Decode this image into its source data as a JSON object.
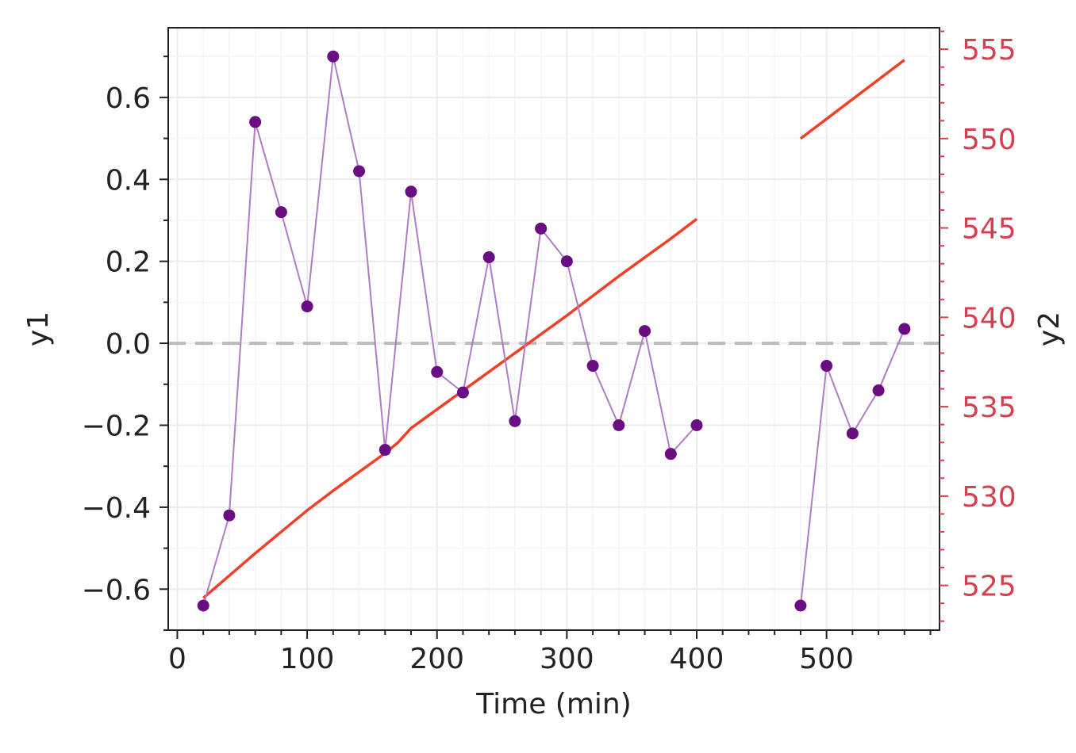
{
  "chart_data": {
    "type": "line",
    "title": "",
    "xlabel": "Time (min)",
    "ylabel": "y1",
    "y2label": "y2",
    "xlim": [
      -7,
      587
    ],
    "ylim": [
      -0.7,
      0.77
    ],
    "y2lim": [
      522.5,
      556.2
    ],
    "xticks": [
      0,
      100,
      200,
      300,
      400,
      500
    ],
    "yticks": [
      -0.6,
      -0.4,
      -0.2,
      0.0,
      0.2,
      0.4,
      0.6
    ],
    "ytick_labels": [
      "−0.6",
      "−0.4",
      "−0.2",
      "0.0",
      "0.2",
      "0.4",
      "0.6"
    ],
    "y2ticks": [
      525,
      530,
      535,
      540,
      545,
      550,
      555
    ],
    "grid": true,
    "reference_line": {
      "axis": "y1",
      "value": 0.0,
      "style": "dashed"
    },
    "colors": {
      "y1_line": "#b07cc6",
      "y1_marker": "#6a0d83",
      "y2_line": "#f0402a",
      "y2_axis": "#d6404e",
      "reference": "#bbbbbb",
      "frame": "#222222"
    },
    "series": [
      {
        "axis": "y1",
        "style": "line+markers",
        "segments": [
          {
            "x": [
              20,
              40,
              60,
              80,
              100,
              120,
              140,
              160,
              180,
              200,
              220,
              240,
              260,
              280,
              300,
              320,
              340,
              360,
              380,
              400
            ],
            "y": [
              -0.64,
              -0.42,
              0.54,
              0.32,
              0.09,
              0.7,
              0.42,
              -0.26,
              0.37,
              -0.07,
              -0.12,
              0.21,
              -0.19,
              0.28,
              0.2,
              -0.055,
              -0.2,
              0.03,
              -0.27,
              -0.2
            ]
          },
          {
            "x": [
              480,
              500,
              520,
              540,
              560
            ],
            "y": [
              -0.64,
              -0.055,
              -0.22,
              -0.115,
              0.035
            ]
          }
        ]
      },
      {
        "axis": "y2",
        "style": "line",
        "segments": [
          {
            "x": [
              20,
              60,
              100,
              120,
              160,
              170,
              180,
              220,
              260,
              300,
              340,
              380,
              400
            ],
            "y": [
              524.3,
              526.8,
              529.2,
              530.3,
              532.4,
              533.0,
              533.8,
              535.9,
              538.0,
              540.1,
              542.3,
              544.4,
              545.5
            ]
          },
          {
            "x": [
              480,
              560
            ],
            "y": [
              550.0,
              554.4
            ]
          }
        ]
      }
    ]
  }
}
